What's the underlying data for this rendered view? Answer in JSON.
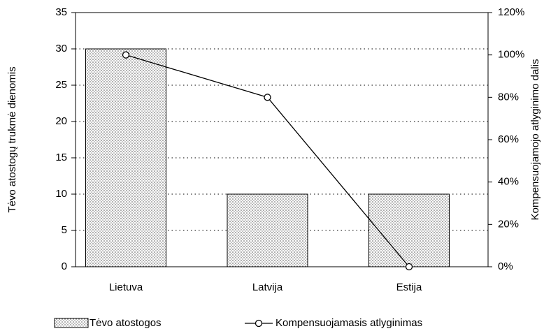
{
  "chart_data": {
    "type": "bar_line",
    "y_label": "Tėvo atostogų trukmė dienomis",
    "y2_label": "Kompensuojamojo atlyginimo dalis",
    "categories": [
      "Lietuva",
      "Latvija",
      "Estija"
    ],
    "series": [
      {
        "name": "Tėvo atostogos",
        "type": "bar",
        "color": "#c8c8c8",
        "values": [
          30,
          10,
          10
        ]
      },
      {
        "name": "Kompensuojamasis atlyginimas",
        "type": "line",
        "axis": "y2",
        "color": "#000000",
        "values": [
          100,
          80,
          0
        ]
      }
    ],
    "ylim": [
      0,
      35
    ],
    "yticks": [
      0,
      5,
      10,
      15,
      20,
      25,
      30,
      35
    ],
    "y2lim": [
      0,
      120
    ],
    "y2ticks": [
      {
        "value": 0,
        "label": "0%"
      },
      {
        "value": 20,
        "label": "20%"
      },
      {
        "value": 40,
        "label": "40%"
      },
      {
        "value": 60,
        "label": "60%"
      },
      {
        "value": 80,
        "label": "80%"
      },
      {
        "value": 100,
        "label": "100%"
      },
      {
        "value": 120,
        "label": "120%"
      }
    ],
    "grid": true,
    "legend": "bottom"
  }
}
